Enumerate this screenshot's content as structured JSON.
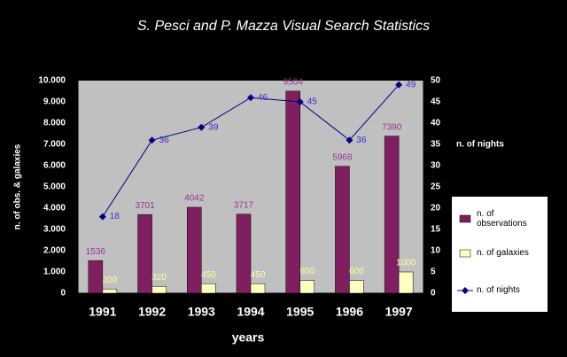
{
  "chart_data": {
    "type": "bar",
    "title": "S. Pesci and P. Mazza Visual Search Statistics",
    "xlabel": "years",
    "ylabel": "n. of obs. & galaxies",
    "y2label": "n. of nights",
    "categories": [
      "1991",
      "1992",
      "1993",
      "1994",
      "1995",
      "1996",
      "1997"
    ],
    "series": [
      {
        "name": "n. of observations",
        "color": "#801f60",
        "values": [
          1536,
          3701,
          4042,
          3717,
          9504,
          5968,
          7390
        ]
      },
      {
        "name": "n. of galaxies",
        "color": "#ffffc0",
        "values": [
          200,
          320,
          450,
          450,
          600,
          600,
          1000
        ]
      },
      {
        "name": "n. of nights",
        "type": "line",
        "axis": "y2",
        "color": "#000080",
        "values": [
          18,
          36,
          39,
          46,
          45,
          36,
          49
        ]
      }
    ],
    "ylim": [
      0,
      10000
    ],
    "yticks": [
      0,
      {
        "value": 1000,
        "label": "1.000"
      },
      {
        "value": 2000,
        "label": "2.000"
      },
      {
        "value": 3000,
        "label": "3.000"
      },
      {
        "value": 4000,
        "label": "4.000"
      },
      {
        "value": 5000,
        "label": "5.000"
      },
      {
        "value": 6000,
        "label": "6.000"
      },
      {
        "value": 7000,
        "label": "7.000"
      },
      {
        "value": 8000,
        "label": "8.000"
      },
      {
        "value": 9000,
        "label": "9.000"
      },
      {
        "value": 10000,
        "label": "10.000"
      }
    ],
    "y2lim": [
      0,
      50
    ],
    "y2ticks": [
      0,
      5,
      10,
      15,
      20,
      25,
      30,
      35,
      40,
      45,
      50
    ],
    "legend": "right",
    "grid": false
  }
}
